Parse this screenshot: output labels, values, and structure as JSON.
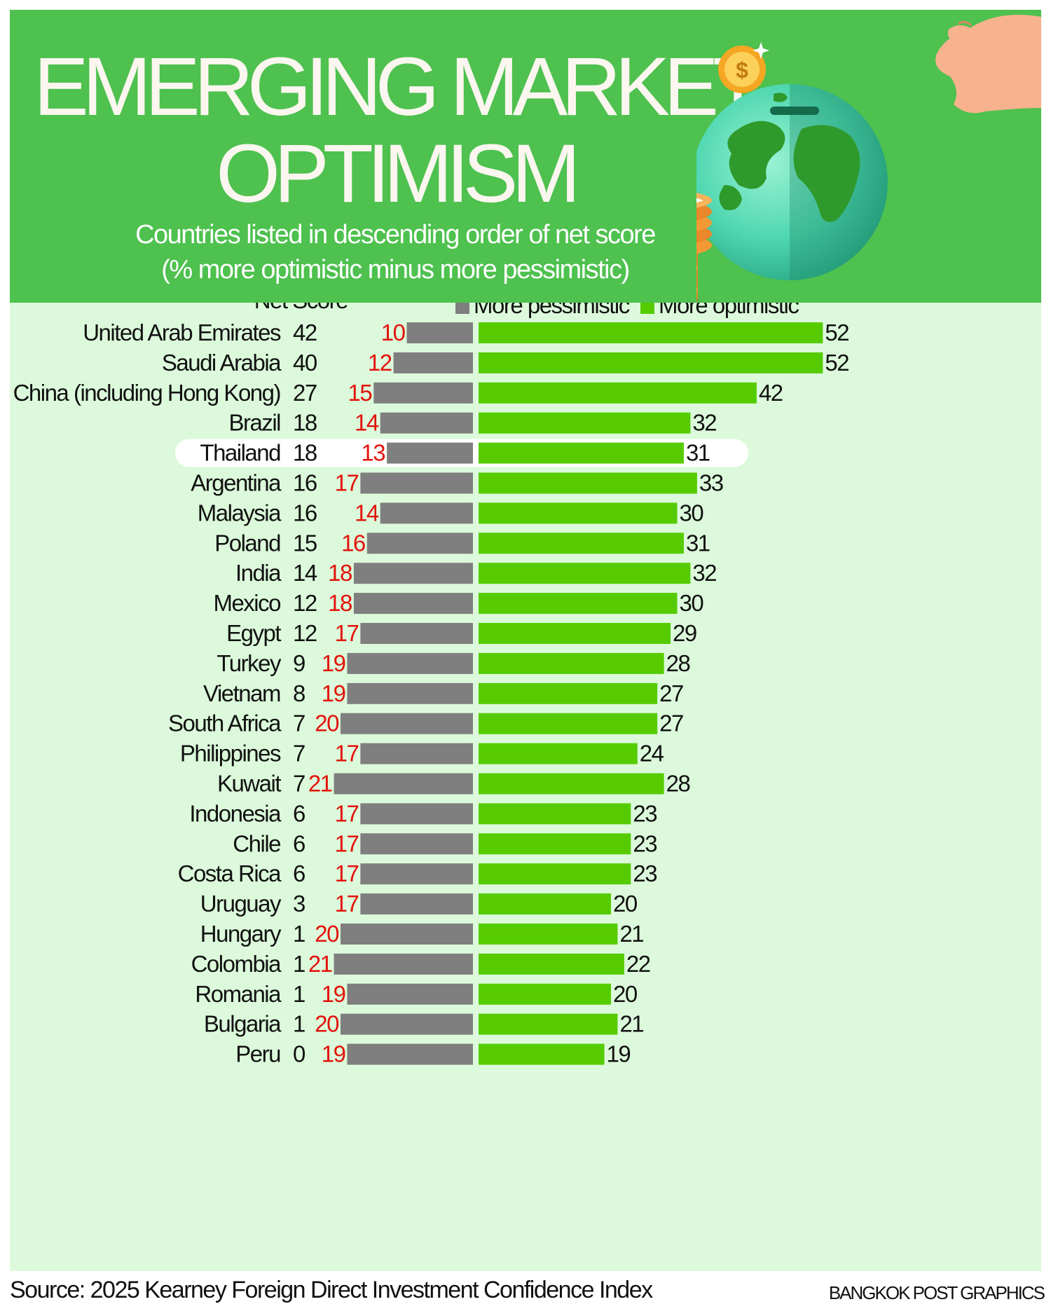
{
  "header": {
    "title_line1": "EMERGING MARKET",
    "title_line2": "OPTIMISM",
    "subtitle_line1": "Countries listed in descending order of net score",
    "subtitle_line2": "(% more optimistic minus more pessimistic)"
  },
  "colors": {
    "header_bg": "#4ec14f",
    "panel_bg": "#dcfadb",
    "pessimistic": "#7f7f7f",
    "optimistic": "#56cc00",
    "pessimistic_label": "#e3120b",
    "highlight": "#ffffff"
  },
  "icons": [
    "hand-icon",
    "coin-icon",
    "globe-icon",
    "coin-stack-icon",
    "sparkle-icon"
  ],
  "chart_data": {
    "type": "bar",
    "orientation": "horizontal",
    "column_header": "Net Score",
    "legend": [
      "More pessimistic",
      "More optimistic"
    ],
    "legend_position": "top-right",
    "highlighted_category": "Thailand",
    "categories": [
      "United Arab Emirates",
      "Saudi Arabia",
      "China (including Hong Kong)",
      "Brazil",
      "Thailand",
      "Argentina",
      "Malaysia",
      "Poland",
      "India",
      "Mexico",
      "Egypt",
      "Turkey",
      "Vietnam",
      "South Africa",
      "Philippines",
      "Kuwait",
      "Indonesia",
      "Chile",
      "Costa Rica",
      "Uruguay",
      "Hungary",
      "Colombia",
      "Romania",
      "Bulgaria",
      "Peru"
    ],
    "net_score": [
      42,
      40,
      27,
      18,
      18,
      16,
      16,
      15,
      14,
      12,
      12,
      9,
      8,
      7,
      7,
      7,
      6,
      6,
      6,
      3,
      1,
      1,
      1,
      1,
      0
    ],
    "series": [
      {
        "name": "More pessimistic",
        "values": [
          10,
          12,
          15,
          14,
          13,
          17,
          14,
          16,
          18,
          18,
          17,
          19,
          19,
          20,
          17,
          21,
          17,
          17,
          17,
          17,
          20,
          21,
          19,
          20,
          19
        ]
      },
      {
        "name": "More optimistic",
        "values": [
          52,
          52,
          42,
          32,
          31,
          33,
          30,
          31,
          32,
          30,
          29,
          28,
          27,
          27,
          24,
          28,
          23,
          23,
          23,
          20,
          21,
          22,
          20,
          21,
          19
        ]
      }
    ]
  },
  "footer": {
    "source": "Source: 2025 Kearney Foreign Direct Investment Confidence Index",
    "credit": "BANGKOK POST GRAPHICS"
  }
}
